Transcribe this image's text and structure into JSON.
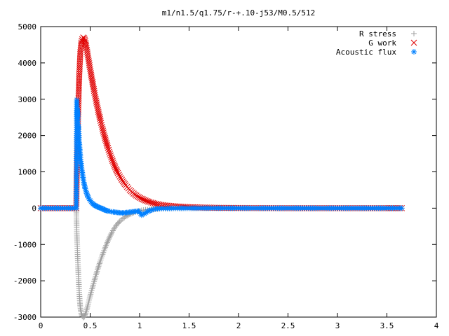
{
  "chart_data": {
    "type": "scatter",
    "title": "m1/n1.5/q1.75/r-+.10-j53/M0.5/512",
    "xlabel": "",
    "ylabel": "",
    "xlim": [
      0,
      4
    ],
    "ylim": [
      -3000,
      5000
    ],
    "grid": false,
    "legend_position": "top-right",
    "x_ticks": [
      {
        "value": 0,
        "label": "0"
      },
      {
        "value": 0.5,
        "label": "0.5"
      },
      {
        "value": 1,
        "label": "1"
      },
      {
        "value": 1.5,
        "label": "1.5"
      },
      {
        "value": 2,
        "label": "2"
      },
      {
        "value": 2.5,
        "label": "2.5"
      },
      {
        "value": 3,
        "label": "3"
      },
      {
        "value": 3.5,
        "label": "3.5"
      },
      {
        "value": 4,
        "label": "4"
      }
    ],
    "y_ticks": [
      {
        "value": -3000,
        "label": "-3000"
      },
      {
        "value": -2000,
        "label": "-2000"
      },
      {
        "value": -1000,
        "label": "-1000"
      },
      {
        "value": 0,
        "label": "0"
      },
      {
        "value": 1000,
        "label": "1000"
      },
      {
        "value": 2000,
        "label": "2000"
      },
      {
        "value": 3000,
        "label": "3000"
      },
      {
        "value": 4000,
        "label": "4000"
      },
      {
        "value": 5000,
        "label": "5000"
      }
    ],
    "series": [
      {
        "name": "R stress",
        "marker": "plus",
        "color": "#a0a0a0",
        "x": [
          0.0,
          0.1,
          0.2,
          0.3,
          0.36,
          0.365,
          0.37,
          0.375,
          0.38,
          0.385,
          0.39,
          0.395,
          0.4,
          0.41,
          0.42,
          0.43,
          0.44,
          0.45,
          0.46,
          0.47,
          0.48,
          0.49,
          0.5,
          0.52,
          0.54,
          0.56,
          0.58,
          0.6,
          0.62,
          0.64,
          0.66,
          0.68,
          0.7,
          0.72,
          0.74,
          0.76,
          0.78,
          0.8,
          0.83,
          0.86,
          0.9,
          0.94,
          0.98,
          1.02,
          1.06,
          1.1,
          1.15,
          1.2,
          1.3,
          1.4,
          1.5,
          1.6,
          1.8,
          2.0,
          2.5,
          3.0,
          3.5,
          3.65
        ],
        "y": [
          0,
          0,
          0,
          0,
          0,
          -650,
          -1050,
          -1450,
          -1780,
          -2050,
          -2320,
          -2540,
          -2720,
          -2900,
          -2980,
          -3010,
          -2990,
          -2930,
          -2850,
          -2750,
          -2640,
          -2530,
          -2420,
          -2220,
          -2020,
          -1830,
          -1650,
          -1480,
          -1320,
          -1170,
          -1030,
          -900,
          -780,
          -670,
          -570,
          -490,
          -420,
          -360,
          -290,
          -230,
          -170,
          -120,
          -90,
          -60,
          -45,
          -35,
          -25,
          -18,
          -10,
          -6,
          -4,
          -2,
          -1,
          0,
          0,
          0,
          0,
          0
        ]
      },
      {
        "name": "G work",
        "marker": "cross",
        "color": "#e00000",
        "x": [
          0.0,
          0.1,
          0.2,
          0.3,
          0.36,
          0.365,
          0.37,
          0.375,
          0.38,
          0.385,
          0.39,
          0.4,
          0.41,
          0.42,
          0.43,
          0.44,
          0.45,
          0.46,
          0.47,
          0.48,
          0.49,
          0.5,
          0.52,
          0.54,
          0.56,
          0.58,
          0.6,
          0.62,
          0.64,
          0.66,
          0.68,
          0.7,
          0.72,
          0.74,
          0.76,
          0.78,
          0.8,
          0.83,
          0.86,
          0.9,
          0.94,
          0.98,
          1.02,
          1.06,
          1.1,
          1.15,
          1.2,
          1.3,
          1.4,
          1.5,
          1.6,
          1.8,
          2.0,
          2.5,
          3.0,
          3.5,
          3.65
        ],
        "y": [
          0,
          0,
          0,
          0,
          0,
          950,
          1580,
          2200,
          2770,
          3250,
          3660,
          4250,
          4560,
          4650,
          4700,
          4680,
          4600,
          4460,
          4310,
          4150,
          3990,
          3830,
          3520,
          3230,
          2960,
          2700,
          2460,
          2240,
          2030,
          1840,
          1660,
          1500,
          1350,
          1210,
          1080,
          970,
          870,
          740,
          630,
          500,
          400,
          320,
          260,
          210,
          170,
          130,
          100,
          65,
          45,
          30,
          20,
          10,
          5,
          0,
          0,
          0,
          0
        ]
      },
      {
        "name": "Acoustic flux",
        "marker": "star",
        "color": "#0080ff",
        "x": [
          0.0,
          0.1,
          0.2,
          0.3,
          0.36,
          0.362,
          0.365,
          0.368,
          0.371,
          0.374,
          0.377,
          0.38,
          0.383,
          0.386,
          0.39,
          0.395,
          0.4,
          0.41,
          0.42,
          0.43,
          0.44,
          0.45,
          0.46,
          0.47,
          0.48,
          0.5,
          0.52,
          0.54,
          0.56,
          0.58,
          0.6,
          0.62,
          0.64,
          0.66,
          0.68,
          0.7,
          0.72,
          0.75,
          0.78,
          0.81,
          0.84,
          0.87,
          0.9,
          0.93,
          0.96,
          0.99,
          1.02,
          1.05,
          1.08,
          1.12,
          1.16,
          1.2,
          1.3,
          1.4,
          1.5,
          1.7,
          2.0,
          2.5,
          3.0,
          3.5,
          3.65
        ],
        "y": [
          0,
          0,
          0,
          0,
          0,
          1650,
          2980,
          2760,
          2550,
          2680,
          2420,
          2200,
          2230,
          2000,
          1800,
          1620,
          1440,
          1180,
          980,
          800,
          660,
          540,
          450,
          370,
          300,
          210,
          140,
          90,
          60,
          30,
          10,
          -10,
          -40,
          -60,
          -80,
          -90,
          -100,
          -110,
          -120,
          -130,
          -130,
          -120,
          -110,
          -100,
          -90,
          -80,
          -190,
          -150,
          -90,
          -50,
          -20,
          -10,
          -5,
          0,
          0,
          0,
          0,
          0,
          0,
          0,
          0
        ]
      }
    ]
  }
}
